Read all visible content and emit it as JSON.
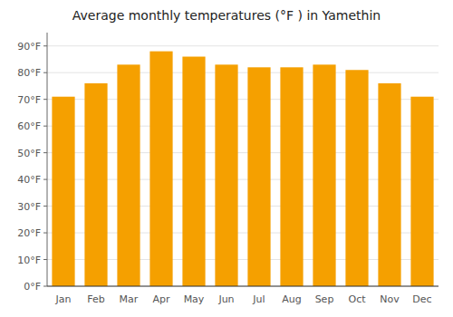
{
  "chart_data": {
    "type": "bar",
    "title": "Average monthly temperatures (°F ) in Yamethin",
    "categories": [
      "Jan",
      "Feb",
      "Mar",
      "Apr",
      "May",
      "Jun",
      "Jul",
      "Aug",
      "Sep",
      "Oct",
      "Nov",
      "Dec"
    ],
    "values": [
      71,
      76,
      83,
      88,
      86,
      83,
      82,
      82,
      83,
      81,
      76,
      71
    ],
    "color": "#F5A000",
    "ylim": [
      0,
      95
    ],
    "yticks": [
      {
        "value": 0,
        "label": "0°F"
      },
      {
        "value": 10,
        "label": "10°F"
      },
      {
        "value": 20,
        "label": "20°F"
      },
      {
        "value": 30,
        "label": "30°F"
      },
      {
        "value": 40,
        "label": "40°F"
      },
      {
        "value": 50,
        "label": "50°F"
      },
      {
        "value": 60,
        "label": "60°F"
      },
      {
        "value": 70,
        "label": "70°F"
      },
      {
        "value": 80,
        "label": "80°F"
      },
      {
        "value": 90,
        "label": "90°F"
      }
    ],
    "grid": true
  }
}
